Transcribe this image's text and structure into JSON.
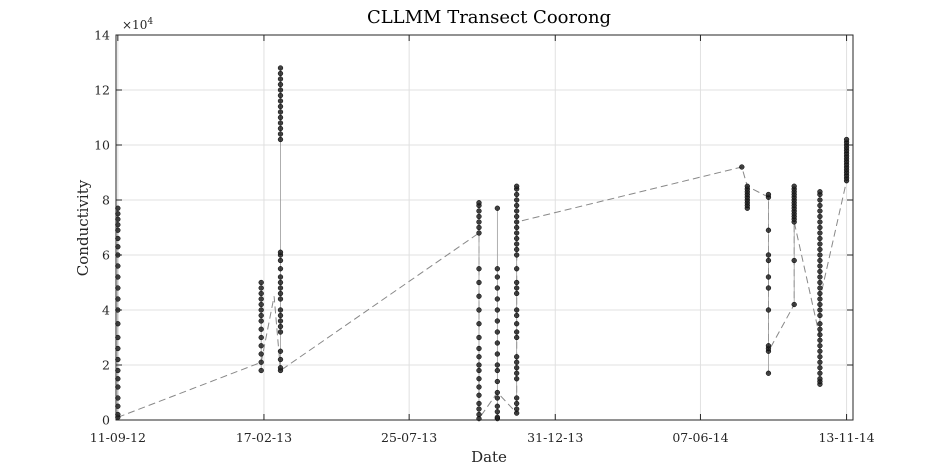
{
  "chart_data": {
    "type": "scatter",
    "title": "CLLMM Transect Coorong",
    "xlabel": "Date",
    "ylabel": "Conductivity",
    "y_exponent": {
      "base": "×10",
      "power": "4"
    },
    "xlim": [
      -2,
      800
    ],
    "ylim": [
      0,
      140000
    ],
    "grid": true,
    "x_axis_type": "date",
    "x_ticks": [
      {
        "date": "2012-09-11",
        "label": "11-09-12"
      },
      {
        "date": "2013-02-17",
        "label": "17-02-13"
      },
      {
        "date": "2013-07-25",
        "label": "25-07-13"
      },
      {
        "date": "2013-12-31",
        "label": "31-12-13"
      },
      {
        "date": "2014-06-07",
        "label": "07-06-14"
      },
      {
        "date": "2014-11-13",
        "label": "13-11-14"
      }
    ],
    "y_ticks": [
      {
        "value": 0,
        "label": "0"
      },
      {
        "value": 20000,
        "label": "2"
      },
      {
        "value": 40000,
        "label": "4"
      },
      {
        "value": 60000,
        "label": "6"
      },
      {
        "value": 80000,
        "label": "8"
      },
      {
        "value": 100000,
        "label": "10"
      },
      {
        "value": 120000,
        "label": "12"
      },
      {
        "value": 140000,
        "label": "14"
      }
    ],
    "point_color": "#222222",
    "line_color": "#888888",
    "series": [
      {
        "x": "2012-09-11",
        "values": [
          1000,
          2000,
          5000,
          8000,
          12000,
          15000,
          18000,
          22000,
          26000,
          30000,
          35000,
          40000,
          44000,
          48000,
          52000,
          56000,
          60000,
          63000,
          66000,
          69000,
          71000,
          73000,
          75000,
          77000
        ]
      },
      {
        "x": "2013-02-14",
        "values": [
          18000,
          21000,
          24000,
          27000,
          30000,
          33000,
          36000,
          38000,
          40000,
          42000,
          44000,
          46000,
          48000,
          50000
        ]
      },
      {
        "x": "2013-03-07",
        "values": [
          18000,
          19000,
          22000,
          25000,
          32000,
          34000,
          36000,
          38000,
          40000,
          44000,
          46000,
          48000,
          50000,
          52000,
          55000,
          58000,
          60000,
          61000,
          102000,
          104000,
          106000,
          108000,
          110000,
          112000,
          114000,
          116000,
          118000,
          120000,
          122000,
          124000,
          126000,
          128000
        ]
      },
      {
        "x": "2013-10-09",
        "values": [
          500,
          2000,
          4000,
          6000,
          9000,
          12000,
          15000,
          18000,
          20000,
          23000,
          26000,
          30000,
          35000,
          40000,
          45000,
          50000,
          55000,
          68000,
          70000,
          72000,
          74000,
          76000,
          78000,
          79000
        ]
      },
      {
        "x": "2013-10-29",
        "values": [
          500,
          1000,
          3000,
          5000,
          8000,
          10000,
          14000,
          18000,
          20000,
          24000,
          28000,
          32000,
          36000,
          40000,
          44000,
          48000,
          52000,
          55000,
          77000
        ]
      },
      {
        "x": "2013-11-19",
        "values": [
          2500,
          4000,
          6000,
          8000,
          15000,
          17000,
          19000,
          21000,
          23000,
          30000,
          32000,
          35000,
          38000,
          40000,
          46000,
          48000,
          50000,
          55000,
          60000,
          62000,
          64000,
          66000,
          68000,
          70000,
          72000,
          74000,
          76000,
          78000,
          80000,
          82000,
          84000,
          85000
        ]
      },
      {
        "x": "2014-07-22",
        "values": [
          92000
        ]
      },
      {
        "x": "2014-07-28",
        "values": [
          77000,
          78000,
          79000,
          80000,
          81000,
          82000,
          83000,
          84000,
          85000
        ]
      },
      {
        "x": "2014-08-20",
        "values": [
          17000,
          25000,
          26000,
          27000,
          40000,
          48000,
          52000,
          58000,
          60000,
          69000,
          81000,
          82000
        ]
      },
      {
        "x": "2014-09-17",
        "values": [
          42000,
          58000,
          72000,
          73000,
          74000,
          75000,
          76000,
          77000,
          78000,
          79000,
          80000,
          81000,
          82000,
          83000,
          84000,
          85000
        ]
      },
      {
        "x": "2014-10-15",
        "values": [
          13000,
          14000,
          15000,
          17000,
          19000,
          21000,
          23000,
          25000,
          27000,
          29000,
          31000,
          33000,
          35000,
          38000,
          40000,
          42000,
          44000,
          46000,
          48000,
          50000,
          52000,
          54000,
          56000,
          58000,
          60000,
          62000,
          64000,
          66000,
          68000,
          70000,
          72000,
          74000,
          76000,
          78000,
          80000,
          82000,
          83000
        ]
      },
      {
        "x": "2014-11-13",
        "values": [
          87000,
          88000,
          89000,
          90000,
          91000,
          92000,
          93000,
          94000,
          95000,
          96000,
          97000,
          98000,
          99000,
          100000,
          101000,
          102000
        ]
      }
    ],
    "trend_line": [
      {
        "x": "2012-09-11",
        "y": 1000
      },
      {
        "x": "2013-02-14",
        "y": 21000
      },
      {
        "x": "2013-02-28",
        "y": 45000
      },
      {
        "x": "2013-03-07",
        "y": 18000
      },
      {
        "x": "2013-10-09",
        "y": 68000
      },
      {
        "x": "2013-10-09",
        "y": 500
      },
      {
        "x": "2013-10-29",
        "y": 10000
      },
      {
        "x": "2013-11-19",
        "y": 2500
      },
      {
        "x": "2013-11-19",
        "y": 72000
      },
      {
        "x": "2014-07-22",
        "y": 92000
      },
      {
        "x": "2014-07-28",
        "y": 85000
      },
      {
        "x": "2014-08-20",
        "y": 81000
      },
      {
        "x": "2014-08-20",
        "y": 25000
      },
      {
        "x": "2014-09-17",
        "y": 42000
      },
      {
        "x": "2014-09-17",
        "y": 72000
      },
      {
        "x": "2014-10-15",
        "y": 30000
      },
      {
        "x": "2014-10-15",
        "y": 44000
      },
      {
        "x": "2014-11-13",
        "y": 87000
      }
    ]
  }
}
